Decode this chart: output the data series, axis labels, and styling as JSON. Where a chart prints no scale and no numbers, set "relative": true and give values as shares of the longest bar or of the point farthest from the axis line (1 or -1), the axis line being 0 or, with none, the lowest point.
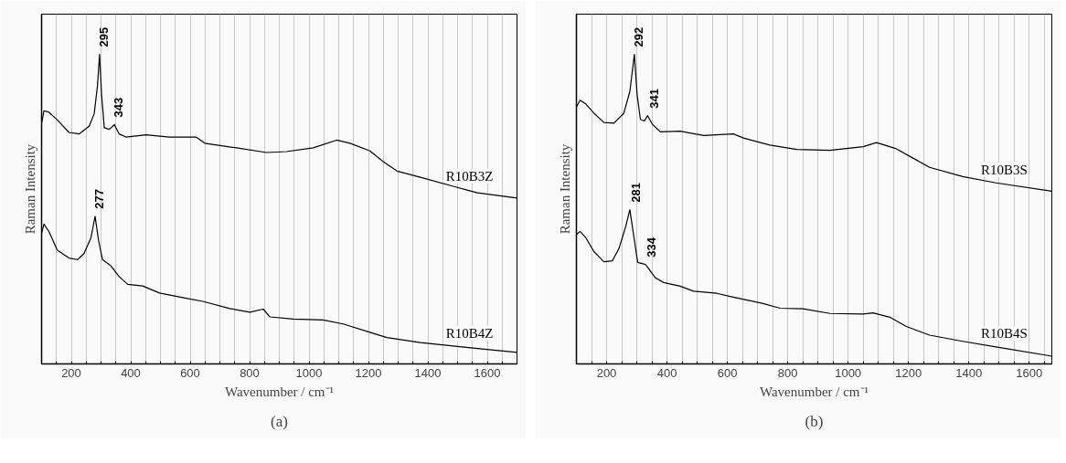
{
  "chart_data": [
    {
      "type": "line",
      "relative": true,
      "xlabel": "Wavenumber / cm⁻¹",
      "ylabel": "Raman Intensity",
      "xlim": [
        100,
        1700
      ],
      "xticks": [
        {
          "value": 100,
          "label": null
        },
        {
          "value": 150,
          "label": null
        },
        200,
        {
          "value": 250,
          "label": null
        },
        {
          "value": 300,
          "label": null
        },
        {
          "value": 350,
          "label": null
        },
        400,
        {
          "value": 450,
          "label": null
        },
        {
          "value": 500,
          "label": null
        },
        {
          "value": 550,
          "label": null
        },
        600,
        {
          "value": 650,
          "label": null
        },
        {
          "value": 700,
          "label": null
        },
        {
          "value": 750,
          "label": null
        },
        800,
        {
          "value": 850,
          "label": null
        },
        {
          "value": 900,
          "label": null
        },
        {
          "value": 950,
          "label": null
        },
        1000,
        {
          "value": 1050,
          "label": null
        },
        {
          "value": 1100,
          "label": null
        },
        {
          "value": 1150,
          "label": null
        },
        1200,
        {
          "value": 1250,
          "label": null
        },
        {
          "value": 1300,
          "label": null
        },
        {
          "value": 1350,
          "label": null
        },
        1400,
        {
          "value": 1450,
          "label": null
        },
        {
          "value": 1500,
          "label": null
        },
        {
          "value": 1550,
          "label": null
        },
        1600,
        {
          "value": 1650,
          "label": null
        },
        {
          "value": 1700,
          "label": null
        }
      ],
      "grid": "x",
      "tick_labels": "x",
      "series": [
        {
          "name": "R10B3Z",
          "color": "#000000",
          "x": [
            100,
            108,
            125,
            153,
            192,
            226,
            260,
            277,
            288,
            295,
            302,
            311,
            328,
            345,
            361,
            384,
            452,
            530,
            620,
            649,
            756,
            857,
            924,
            1014,
            1093,
            1138,
            1205,
            1251,
            1296,
            1375,
            1488,
            1567,
            1700
          ],
          "values": [
            0.778,
            0.818,
            0.813,
            0.788,
            0.748,
            0.743,
            0.768,
            0.808,
            0.898,
            1.0,
            0.868,
            0.763,
            0.758,
            0.773,
            0.743,
            0.733,
            0.74,
            0.733,
            0.733,
            0.713,
            0.698,
            0.683,
            0.686,
            0.698,
            0.723,
            0.713,
            0.688,
            0.653,
            0.623,
            0.603,
            0.573,
            0.553,
            0.536
          ]
        },
        {
          "name": "R10B4Z",
          "color": "#000000",
          "x": [
            100,
            108,
            125,
            153,
            192,
            221,
            243,
            266,
            280,
            292,
            305,
            333,
            361,
            390,
            440,
            497,
            587,
            643,
            733,
            801,
            846,
            868,
            947,
            1048,
            1115,
            1205,
            1262,
            1375,
            1544,
            1700
          ],
          "values": [
            0.422,
            0.452,
            0.427,
            0.367,
            0.342,
            0.337,
            0.357,
            0.407,
            0.477,
            0.397,
            0.337,
            0.317,
            0.282,
            0.257,
            0.252,
            0.229,
            0.212,
            0.202,
            0.179,
            0.167,
            0.177,
            0.152,
            0.145,
            0.142,
            0.129,
            0.102,
            0.085,
            0.069,
            0.052,
            0.037
          ]
        }
      ],
      "annotations": [
        {
          "text": "295",
          "x": 295,
          "y": 1.0
        },
        {
          "text": "343",
          "x": 343,
          "y": 0.773
        },
        {
          "text": "277",
          "x": 277,
          "y": 0.477
        },
        "(a)"
      ]
    },
    {
      "type": "line",
      "relative": true,
      "xlabel": "Wavenumber / cm⁻¹",
      "ylabel": "Raman Intensity",
      "xlim": [
        100,
        1675
      ],
      "xticks": [
        {
          "value": 100,
          "label": null
        },
        {
          "value": 150,
          "label": null
        },
        200,
        {
          "value": 250,
          "label": null
        },
        {
          "value": 300,
          "label": null
        },
        {
          "value": 350,
          "label": null
        },
        400,
        {
          "value": 450,
          "label": null
        },
        {
          "value": 500,
          "label": null
        },
        {
          "value": 550,
          "label": null
        },
        600,
        {
          "value": 650,
          "label": null
        },
        {
          "value": 700,
          "label": null
        },
        {
          "value": 750,
          "label": null
        },
        800,
        {
          "value": 850,
          "label": null
        },
        {
          "value": 900,
          "label": null
        },
        {
          "value": 950,
          "label": null
        },
        1000,
        {
          "value": 1050,
          "label": null
        },
        {
          "value": 1100,
          "label": null
        },
        {
          "value": 1150,
          "label": null
        },
        1200,
        {
          "value": 1250,
          "label": null
        },
        {
          "value": 1300,
          "label": null
        },
        {
          "value": 1350,
          "label": null
        },
        1400,
        {
          "value": 1450,
          "label": null
        },
        {
          "value": 1500,
          "label": null
        },
        {
          "value": 1550,
          "label": null
        },
        1600,
        {
          "value": 1650,
          "label": null
        }
      ],
      "grid": "x",
      "tick_labels": "x",
      "series": [
        {
          "name": "R10B3S",
          "color": "#000000",
          "x": [
            100,
            112,
            131,
            158,
            191,
            224,
            257,
            277,
            292,
            301,
            312,
            325,
            336,
            351,
            378,
            444,
            521,
            620,
            653,
            741,
            830,
            940,
            1050,
            1094,
            1160,
            1215,
            1270,
            1380,
            1490,
            1675
          ],
          "values": [
            0.83,
            0.852,
            0.84,
            0.81,
            0.78,
            0.778,
            0.81,
            0.88,
            1.0,
            0.87,
            0.79,
            0.785,
            0.802,
            0.775,
            0.75,
            0.752,
            0.738,
            0.743,
            0.73,
            0.707,
            0.693,
            0.69,
            0.702,
            0.715,
            0.695,
            0.665,
            0.635,
            0.605,
            0.585,
            0.558
          ]
        },
        {
          "name": "R10B4S",
          "color": "#000000",
          "x": [
            100,
            112,
            131,
            158,
            191,
            219,
            241,
            263,
            277,
            290,
            303,
            329,
            362,
            389,
            444,
            488,
            565,
            609,
            719,
            774,
            851,
            940,
            1050,
            1083,
            1138,
            1193,
            1270,
            1380,
            1490,
            1675
          ],
          "values": [
            0.418,
            0.428,
            0.408,
            0.363,
            0.33,
            0.333,
            0.373,
            0.443,
            0.498,
            0.413,
            0.328,
            0.321,
            0.278,
            0.263,
            0.251,
            0.235,
            0.228,
            0.218,
            0.195,
            0.18,
            0.178,
            0.163,
            0.161,
            0.165,
            0.151,
            0.121,
            0.093,
            0.073,
            0.055,
            0.025
          ]
        }
      ],
      "annotations": [
        {
          "text": "292",
          "x": 292,
          "y": 1.0
        },
        {
          "text": "341",
          "x": 341,
          "y": 0.802
        },
        {
          "text": "281",
          "x": 281,
          "y": 0.498
        },
        {
          "text": "334",
          "x": 334,
          "y": 0.321
        },
        "(b)"
      ]
    }
  ]
}
